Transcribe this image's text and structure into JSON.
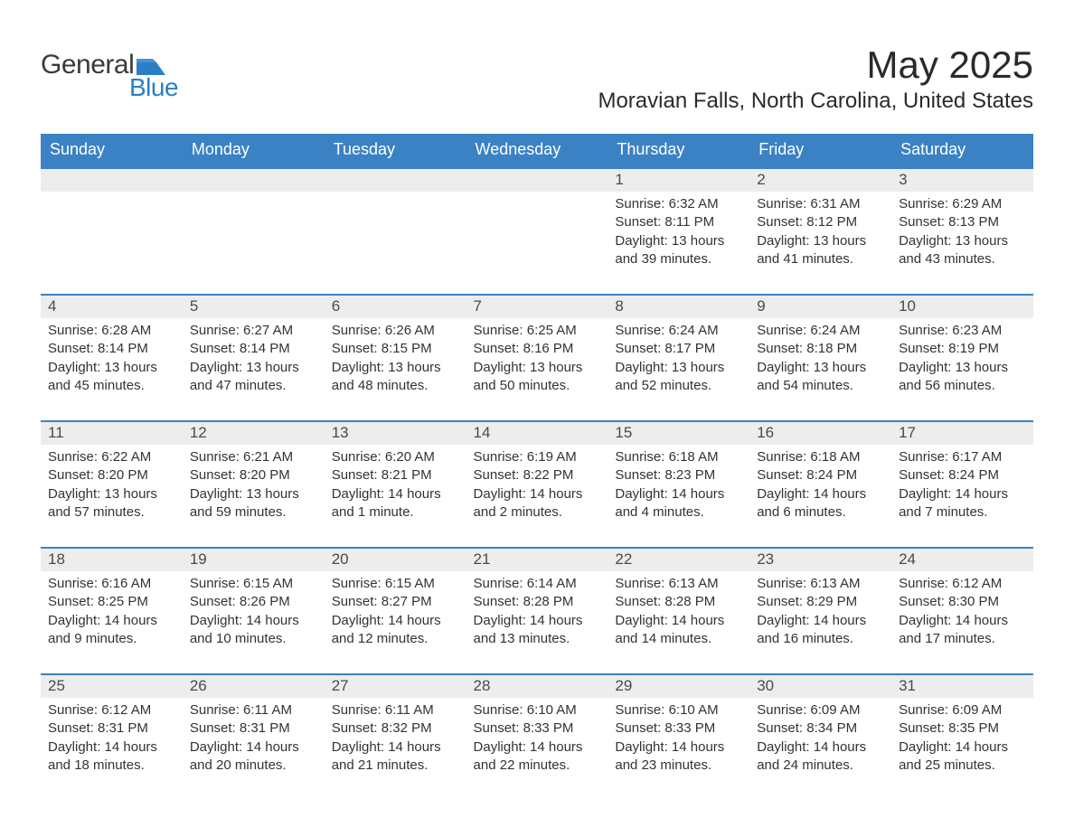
{
  "logo": {
    "word1": "General",
    "word2": "Blue",
    "flag_color": "#2a7fc5",
    "text_gray": "#3a3a3a"
  },
  "title": "May 2025",
  "location": "Moravian Falls, North Carolina, United States",
  "colors": {
    "header_bg": "#3a82c4",
    "header_text": "#ffffff",
    "daynum_bg": "#ededed",
    "row_border": "#3a82c4",
    "body_text": "#333333",
    "background": "#ffffff"
  },
  "fonts": {
    "title_size": 42,
    "location_size": 24,
    "dayheader_size": 18,
    "daynum_size": 17,
    "body_size": 15
  },
  "day_headers": [
    "Sunday",
    "Monday",
    "Tuesday",
    "Wednesday",
    "Thursday",
    "Friday",
    "Saturday"
  ],
  "labels": {
    "sunrise": "Sunrise:",
    "sunset": "Sunset:",
    "daylight": "Daylight:"
  },
  "weeks": [
    [
      null,
      null,
      null,
      null,
      {
        "n": "1",
        "sr": "6:32 AM",
        "ss": "8:11 PM",
        "dl": "13 hours and 39 minutes."
      },
      {
        "n": "2",
        "sr": "6:31 AM",
        "ss": "8:12 PM",
        "dl": "13 hours and 41 minutes."
      },
      {
        "n": "3",
        "sr": "6:29 AM",
        "ss": "8:13 PM",
        "dl": "13 hours and 43 minutes."
      }
    ],
    [
      {
        "n": "4",
        "sr": "6:28 AM",
        "ss": "8:14 PM",
        "dl": "13 hours and 45 minutes."
      },
      {
        "n": "5",
        "sr": "6:27 AM",
        "ss": "8:14 PM",
        "dl": "13 hours and 47 minutes."
      },
      {
        "n": "6",
        "sr": "6:26 AM",
        "ss": "8:15 PM",
        "dl": "13 hours and 48 minutes."
      },
      {
        "n": "7",
        "sr": "6:25 AM",
        "ss": "8:16 PM",
        "dl": "13 hours and 50 minutes."
      },
      {
        "n": "8",
        "sr": "6:24 AM",
        "ss": "8:17 PM",
        "dl": "13 hours and 52 minutes."
      },
      {
        "n": "9",
        "sr": "6:24 AM",
        "ss": "8:18 PM",
        "dl": "13 hours and 54 minutes."
      },
      {
        "n": "10",
        "sr": "6:23 AM",
        "ss": "8:19 PM",
        "dl": "13 hours and 56 minutes."
      }
    ],
    [
      {
        "n": "11",
        "sr": "6:22 AM",
        "ss": "8:20 PM",
        "dl": "13 hours and 57 minutes."
      },
      {
        "n": "12",
        "sr": "6:21 AM",
        "ss": "8:20 PM",
        "dl": "13 hours and 59 minutes."
      },
      {
        "n": "13",
        "sr": "6:20 AM",
        "ss": "8:21 PM",
        "dl": "14 hours and 1 minute."
      },
      {
        "n": "14",
        "sr": "6:19 AM",
        "ss": "8:22 PM",
        "dl": "14 hours and 2 minutes."
      },
      {
        "n": "15",
        "sr": "6:18 AM",
        "ss": "8:23 PM",
        "dl": "14 hours and 4 minutes."
      },
      {
        "n": "16",
        "sr": "6:18 AM",
        "ss": "8:24 PM",
        "dl": "14 hours and 6 minutes."
      },
      {
        "n": "17",
        "sr": "6:17 AM",
        "ss": "8:24 PM",
        "dl": "14 hours and 7 minutes."
      }
    ],
    [
      {
        "n": "18",
        "sr": "6:16 AM",
        "ss": "8:25 PM",
        "dl": "14 hours and 9 minutes."
      },
      {
        "n": "19",
        "sr": "6:15 AM",
        "ss": "8:26 PM",
        "dl": "14 hours and 10 minutes."
      },
      {
        "n": "20",
        "sr": "6:15 AM",
        "ss": "8:27 PM",
        "dl": "14 hours and 12 minutes."
      },
      {
        "n": "21",
        "sr": "6:14 AM",
        "ss": "8:28 PM",
        "dl": "14 hours and 13 minutes."
      },
      {
        "n": "22",
        "sr": "6:13 AM",
        "ss": "8:28 PM",
        "dl": "14 hours and 14 minutes."
      },
      {
        "n": "23",
        "sr": "6:13 AM",
        "ss": "8:29 PM",
        "dl": "14 hours and 16 minutes."
      },
      {
        "n": "24",
        "sr": "6:12 AM",
        "ss": "8:30 PM",
        "dl": "14 hours and 17 minutes."
      }
    ],
    [
      {
        "n": "25",
        "sr": "6:12 AM",
        "ss": "8:31 PM",
        "dl": "14 hours and 18 minutes."
      },
      {
        "n": "26",
        "sr": "6:11 AM",
        "ss": "8:31 PM",
        "dl": "14 hours and 20 minutes."
      },
      {
        "n": "27",
        "sr": "6:11 AM",
        "ss": "8:32 PM",
        "dl": "14 hours and 21 minutes."
      },
      {
        "n": "28",
        "sr": "6:10 AM",
        "ss": "8:33 PM",
        "dl": "14 hours and 22 minutes."
      },
      {
        "n": "29",
        "sr": "6:10 AM",
        "ss": "8:33 PM",
        "dl": "14 hours and 23 minutes."
      },
      {
        "n": "30",
        "sr": "6:09 AM",
        "ss": "8:34 PM",
        "dl": "14 hours and 24 minutes."
      },
      {
        "n": "31",
        "sr": "6:09 AM",
        "ss": "8:35 PM",
        "dl": "14 hours and 25 minutes."
      }
    ]
  ]
}
